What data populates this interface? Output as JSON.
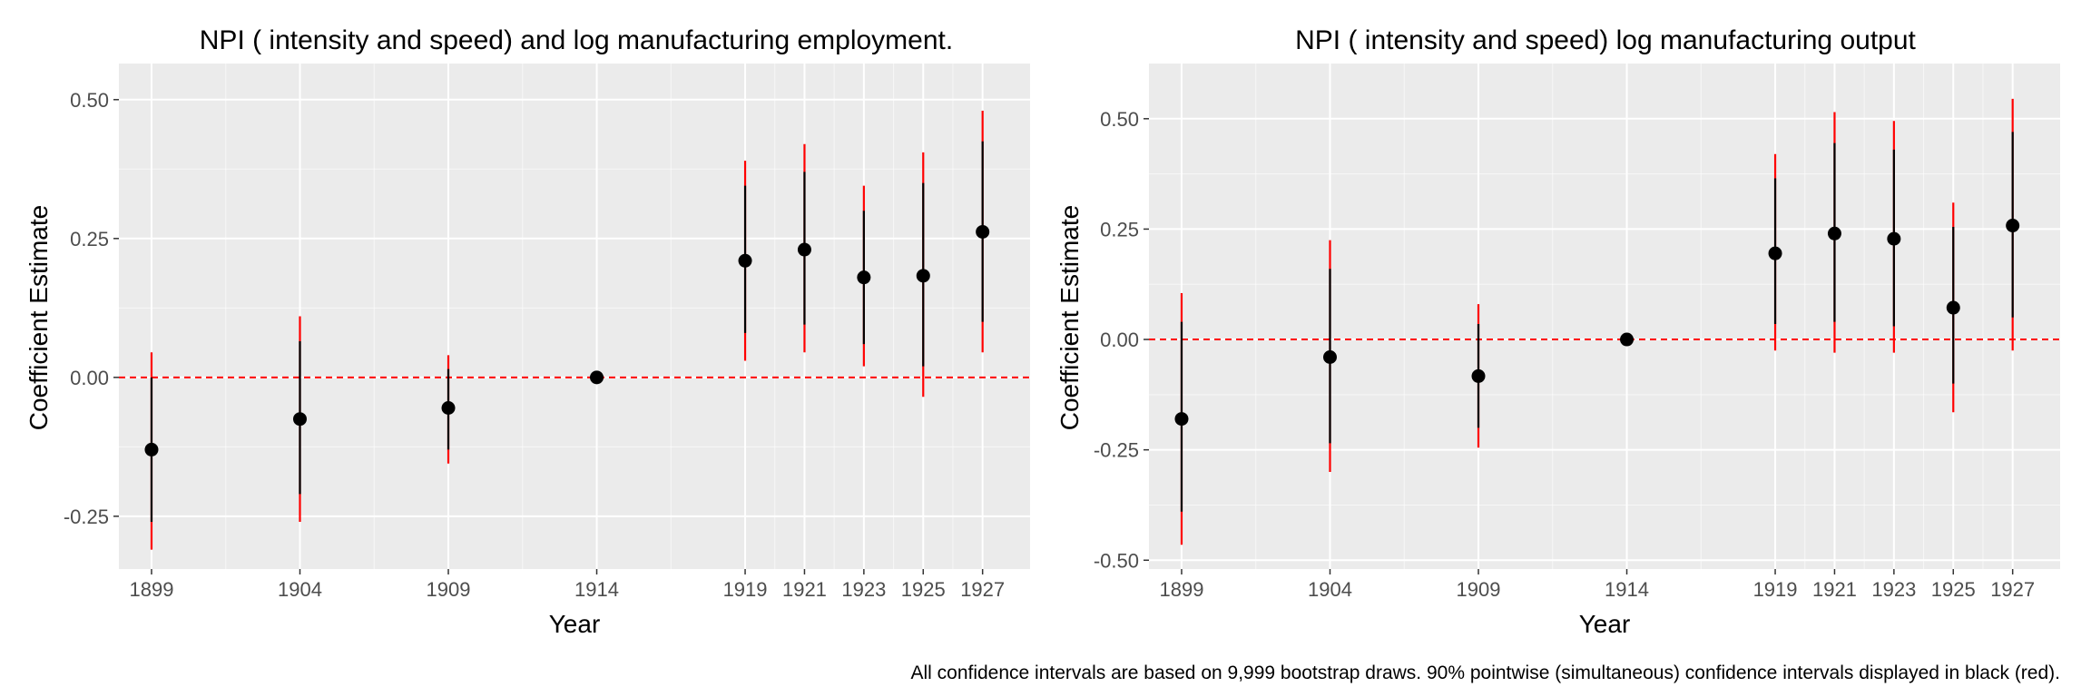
{
  "caption": "All confidence intervals are based on 9,999 bootstrap draws. 90% pointwise (simultaneous) confidence intervals displayed in black (red).",
  "colors": {
    "panel_bg": "#ebebeb",
    "grid_major": "#ffffff",
    "point": "#000000",
    "pointwise_ci": "#000000",
    "simultaneous_ci": "#ff0000",
    "zero_line": "#ff0000",
    "tick_text": "#4d4d4d"
  },
  "chart_data": [
    {
      "type": "scatter",
      "title": "NPI ( intensity and speed) and log manufacturing employment.",
      "xlabel": "Year",
      "ylabel": "Coefficient Estimate",
      "xlim": [
        1897.9,
        1928.6
      ],
      "ylim": [
        -0.345,
        0.565
      ],
      "x_ticks": [
        1899,
        1904,
        1909,
        1914,
        1919,
        1921,
        1923,
        1925,
        1927
      ],
      "x_tick_labels": [
        "1899",
        "1904",
        "1909",
        "1914",
        "1919",
        "1921",
        "1923",
        "1925",
        "1927"
      ],
      "y_ticks": [
        -0.25,
        0,
        0.25,
        0.5
      ],
      "y_tick_labels": [
        "-0.25",
        "0.00",
        "0.25",
        "0.50"
      ],
      "reference_line": 0,
      "grid": true,
      "points": [
        {
          "x": 1899,
          "y": -0.13,
          "ci_low": -0.26,
          "ci_high": 0.0,
          "sim_low": -0.31,
          "sim_high": 0.045
        },
        {
          "x": 1904,
          "y": -0.075,
          "ci_low": -0.21,
          "ci_high": 0.065,
          "sim_low": -0.26,
          "sim_high": 0.11
        },
        {
          "x": 1909,
          "y": -0.055,
          "ci_low": -0.13,
          "ci_high": 0.015,
          "sim_low": -0.155,
          "sim_high": 0.04
        },
        {
          "x": 1914,
          "y": 0.0,
          "ci_low": 0.0,
          "ci_high": 0.0,
          "sim_low": 0.0,
          "sim_high": 0.0
        },
        {
          "x": 1919,
          "y": 0.21,
          "ci_low": 0.08,
          "ci_high": 0.345,
          "sim_low": 0.03,
          "sim_high": 0.39
        },
        {
          "x": 1921,
          "y": 0.23,
          "ci_low": 0.095,
          "ci_high": 0.37,
          "sim_low": 0.045,
          "sim_high": 0.42
        },
        {
          "x": 1923,
          "y": 0.18,
          "ci_low": 0.06,
          "ci_high": 0.3,
          "sim_low": 0.02,
          "sim_high": 0.345
        },
        {
          "x": 1925,
          "y": 0.183,
          "ci_low": 0.02,
          "ci_high": 0.35,
          "sim_low": -0.035,
          "sim_high": 0.405
        },
        {
          "x": 1927,
          "y": 0.262,
          "ci_low": 0.1,
          "ci_high": 0.425,
          "sim_low": 0.045,
          "sim_high": 0.48
        }
      ]
    },
    {
      "type": "scatter",
      "title": "NPI ( intensity and speed) log manufacturing output",
      "xlabel": "Year",
      "ylabel": "Coefficient Estimate",
      "xlim": [
        1897.9,
        1928.6
      ],
      "ylim": [
        -0.52,
        0.625
      ],
      "x_ticks": [
        1899,
        1904,
        1909,
        1914,
        1919,
        1921,
        1923,
        1925,
        1927
      ],
      "x_tick_labels": [
        "1899",
        "1904",
        "1909",
        "1914",
        "1919",
        "1921",
        "1923",
        "1925",
        "1927"
      ],
      "y_ticks": [
        -0.5,
        -0.25,
        0,
        0.25,
        0.5
      ],
      "y_tick_labels": [
        "-0.50",
        "-0.25",
        "0.00",
        "0.25",
        "0.50"
      ],
      "reference_line": 0,
      "grid": true,
      "points": [
        {
          "x": 1899,
          "y": -0.18,
          "ci_low": -0.39,
          "ci_high": 0.04,
          "sim_low": -0.465,
          "sim_high": 0.105
        },
        {
          "x": 1904,
          "y": -0.04,
          "ci_low": -0.235,
          "ci_high": 0.16,
          "sim_low": -0.3,
          "sim_high": 0.225
        },
        {
          "x": 1909,
          "y": -0.083,
          "ci_low": -0.2,
          "ci_high": 0.035,
          "sim_low": -0.245,
          "sim_high": 0.08
        },
        {
          "x": 1914,
          "y": 0.0,
          "ci_low": 0.0,
          "ci_high": 0.0,
          "sim_low": 0.0,
          "sim_high": 0.0
        },
        {
          "x": 1919,
          "y": 0.195,
          "ci_low": 0.035,
          "ci_high": 0.365,
          "sim_low": -0.025,
          "sim_high": 0.42
        },
        {
          "x": 1921,
          "y": 0.24,
          "ci_low": 0.04,
          "ci_high": 0.445,
          "sim_low": -0.03,
          "sim_high": 0.515
        },
        {
          "x": 1923,
          "y": 0.228,
          "ci_low": 0.03,
          "ci_high": 0.43,
          "sim_low": -0.03,
          "sim_high": 0.495
        },
        {
          "x": 1925,
          "y": 0.072,
          "ci_low": -0.1,
          "ci_high": 0.255,
          "sim_low": -0.165,
          "sim_high": 0.31
        },
        {
          "x": 1927,
          "y": 0.258,
          "ci_low": 0.05,
          "ci_high": 0.47,
          "sim_low": -0.025,
          "sim_high": 0.545
        }
      ]
    }
  ]
}
